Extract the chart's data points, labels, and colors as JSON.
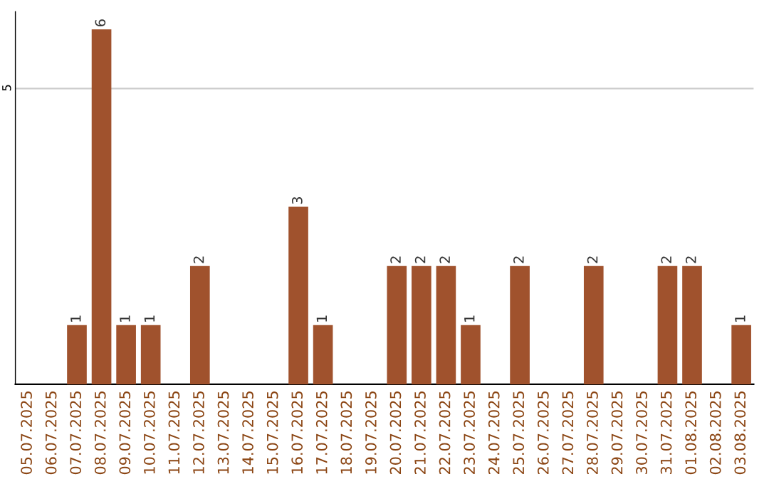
{
  "chart_data": {
    "type": "bar",
    "categories": [
      "05.07.2025",
      "06.07.2025",
      "07.07.2025",
      "08.07.2025",
      "09.07.2025",
      "10.07.2025",
      "11.07.2025",
      "12.07.2025",
      "13.07.2025",
      "14.07.2025",
      "15.07.2025",
      "16.07.2025",
      "17.07.2025",
      "18.07.2025",
      "19.07.2025",
      "20.07.2025",
      "21.07.2025",
      "22.07.2025",
      "23.07.2025",
      "24.07.2025",
      "25.07.2025",
      "26.07.2025",
      "27.07.2025",
      "28.07.2025",
      "29.07.2025",
      "30.07.2025",
      "31.07.2025",
      "01.08.2025",
      "02.08.2025",
      "03.08.2025"
    ],
    "values": [
      0,
      0,
      1,
      6,
      1,
      1,
      0,
      2,
      0,
      0,
      0,
      3,
      1,
      0,
      0,
      2,
      2,
      2,
      1,
      0,
      2,
      0,
      0,
      2,
      0,
      0,
      2,
      2,
      0,
      1
    ],
    "value_labels": [
      null,
      null,
      "1",
      "6",
      "1",
      "1",
      null,
      "2",
      null,
      null,
      null,
      "3",
      "1",
      null,
      null,
      "2",
      "2",
      "2",
      "1",
      null,
      "2",
      null,
      null,
      "2",
      null,
      null,
      "2",
      "2",
      null,
      "1"
    ],
    "color": "#a0522d",
    "ylim": [
      0,
      6.3
    ],
    "yticks": [
      5
    ],
    "grid": "y"
  }
}
